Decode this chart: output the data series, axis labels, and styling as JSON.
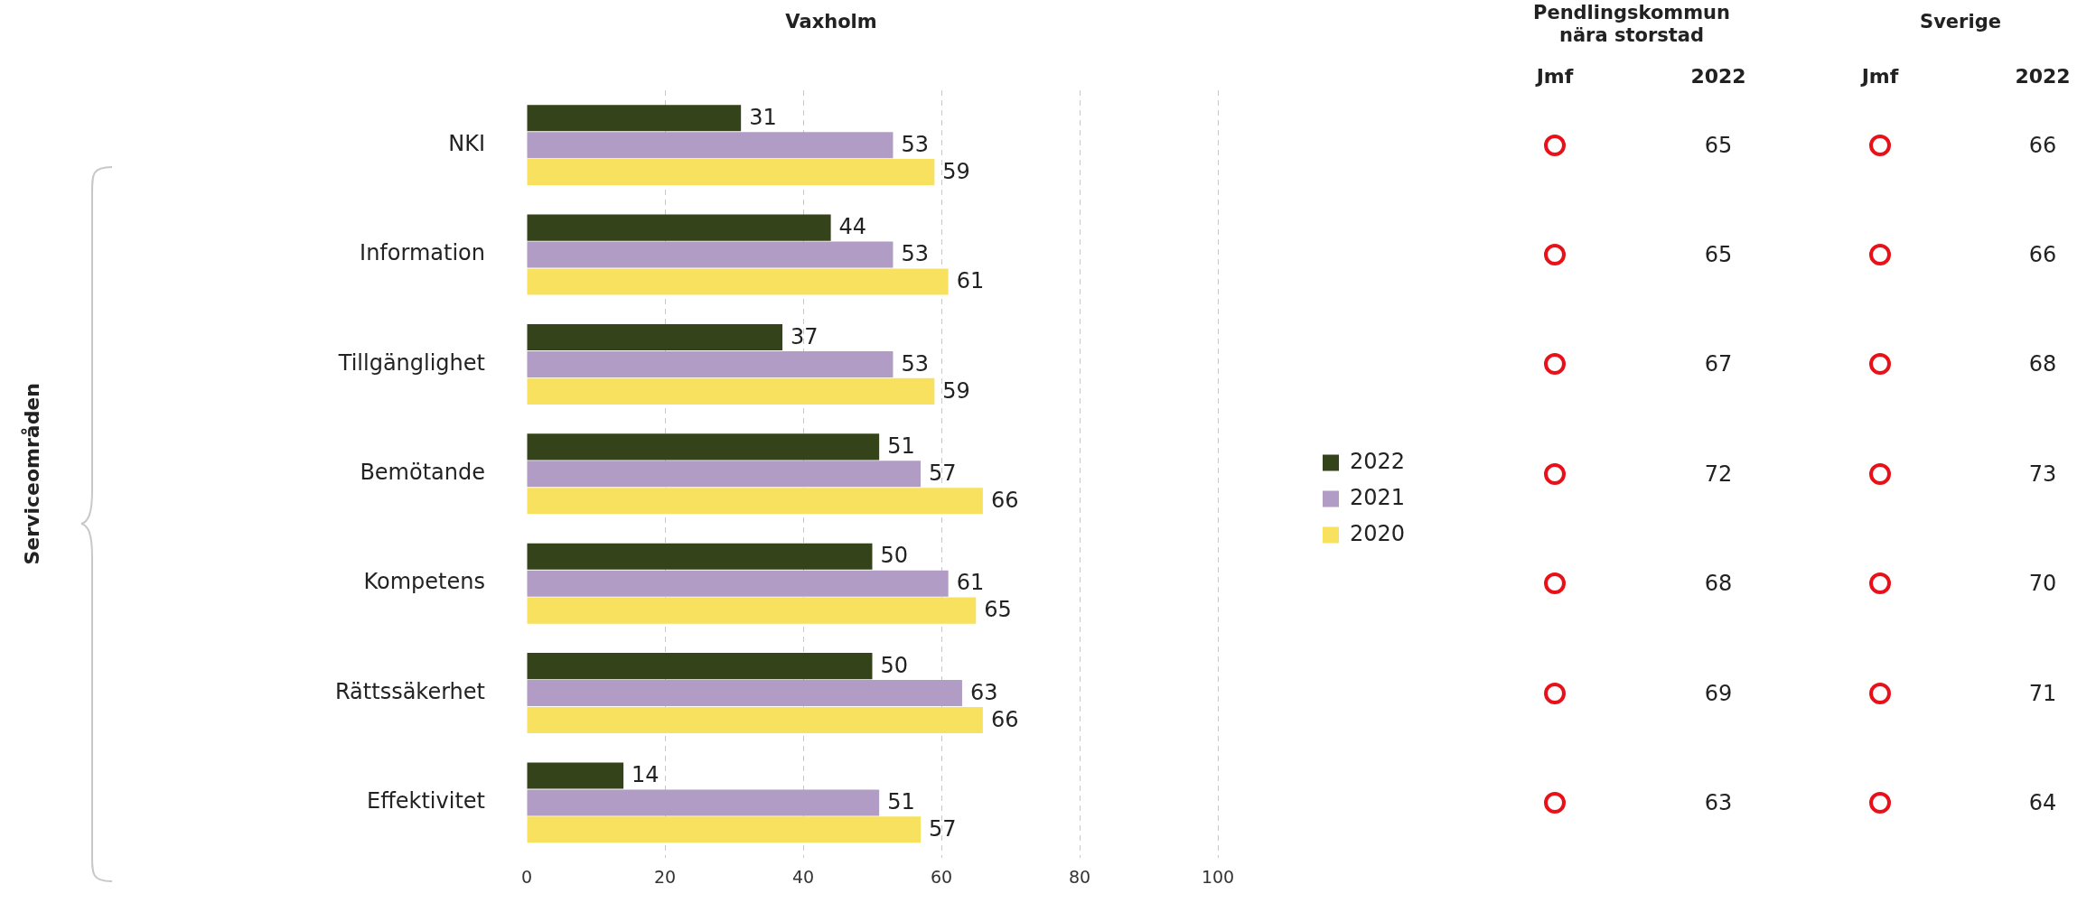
{
  "chart_data": [
    {
      "type": "bar",
      "orientation": "horizontal",
      "title": "Vaxholm",
      "ylabel": "Serviceområden",
      "categories": [
        "NKI",
        "Information",
        "Tillgänglighet",
        "Bemötande",
        "Kompetens",
        "Rättssäkerhet",
        "Effektivitet"
      ],
      "series": [
        {
          "name": "2022",
          "color": "#344319",
          "values": [
            31,
            44,
            37,
            51,
            50,
            50,
            14
          ]
        },
        {
          "name": "2021",
          "color": "#b09cc4",
          "values": [
            53,
            53,
            53,
            57,
            61,
            63,
            51
          ]
        },
        {
          "name": "2020",
          "color": "#f9e160",
          "values": [
            59,
            61,
            59,
            66,
            65,
            66,
            57
          ]
        }
      ],
      "xlim": [
        0,
        100
      ],
      "xticks": [
        0,
        20,
        40,
        60,
        80,
        100
      ],
      "grid": "x",
      "legend": "right",
      "data_labels": true
    },
    {
      "type": "heatmap",
      "title": "Pendlingskommun nära storstad",
      "categories": [
        "Jmf",
        "2022"
      ],
      "y_categories": [
        null,
        null,
        null,
        null,
        null,
        null,
        null
      ],
      "cells": [
        [
          null,
          65
        ],
        [
          null,
          65
        ],
        [
          null,
          67
        ],
        [
          null,
          72
        ],
        [
          null,
          68
        ],
        [
          null,
          69
        ],
        [
          null,
          63
        ]
      ],
      "data_labels": true
    },
    {
      "type": "heatmap",
      "title": "Sverige",
      "categories": [
        "Jmf",
        "2022"
      ],
      "y_categories": [
        null,
        null,
        null,
        null,
        null,
        null,
        null
      ],
      "cells": [
        [
          null,
          66
        ],
        [
          null,
          66
        ],
        [
          null,
          68
        ],
        [
          null,
          73
        ],
        [
          null,
          70
        ],
        [
          null,
          71
        ],
        [
          null,
          64
        ]
      ],
      "data_labels": true
    }
  ]
}
